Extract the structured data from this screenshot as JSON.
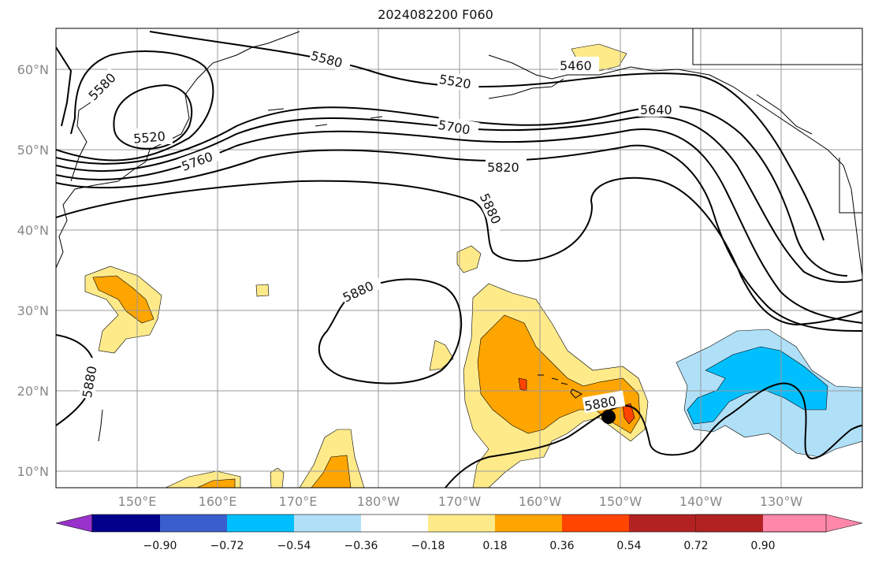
{
  "title": "2024082200 F060",
  "map": {
    "lat_ticks": [
      "10°N",
      "20°N",
      "30°N",
      "40°N",
      "50°N",
      "60°N"
    ],
    "lon_ticks": [
      "150°E",
      "160°E",
      "170°E",
      "180°W",
      "170°W",
      "160°W",
      "150°W",
      "140°W",
      "130°W"
    ],
    "contour_labels": [
      "5580",
      "5520",
      "5760",
      "5580",
      "5520",
      "5460",
      "5700",
      "5640",
      "5820",
      "5880",
      "5880",
      "5880",
      "5880"
    ],
    "marker": "storm-center",
    "shading_colors": {
      "pos_018_036": "#ffea8a",
      "pos_036_054": "#ffa500",
      "pos_054_072": "#ff4500",
      "neg_018_036": "#b0e0f8",
      "neg_036_054": "#00bfff"
    }
  },
  "colorbar": {
    "ticks": [
      "−0.90",
      "−0.72",
      "−0.54",
      "−0.36",
      "−0.18",
      "0.18",
      "0.36",
      "0.54",
      "0.72",
      "0.90"
    ],
    "colors": [
      "#9932cc",
      "#00008b",
      "#3a5fcd",
      "#00bfff",
      "#b0e0f8",
      "#ffffff",
      "#ffea8a",
      "#ffa500",
      "#ff4500",
      "#b22222",
      "#ff88aa"
    ]
  }
}
